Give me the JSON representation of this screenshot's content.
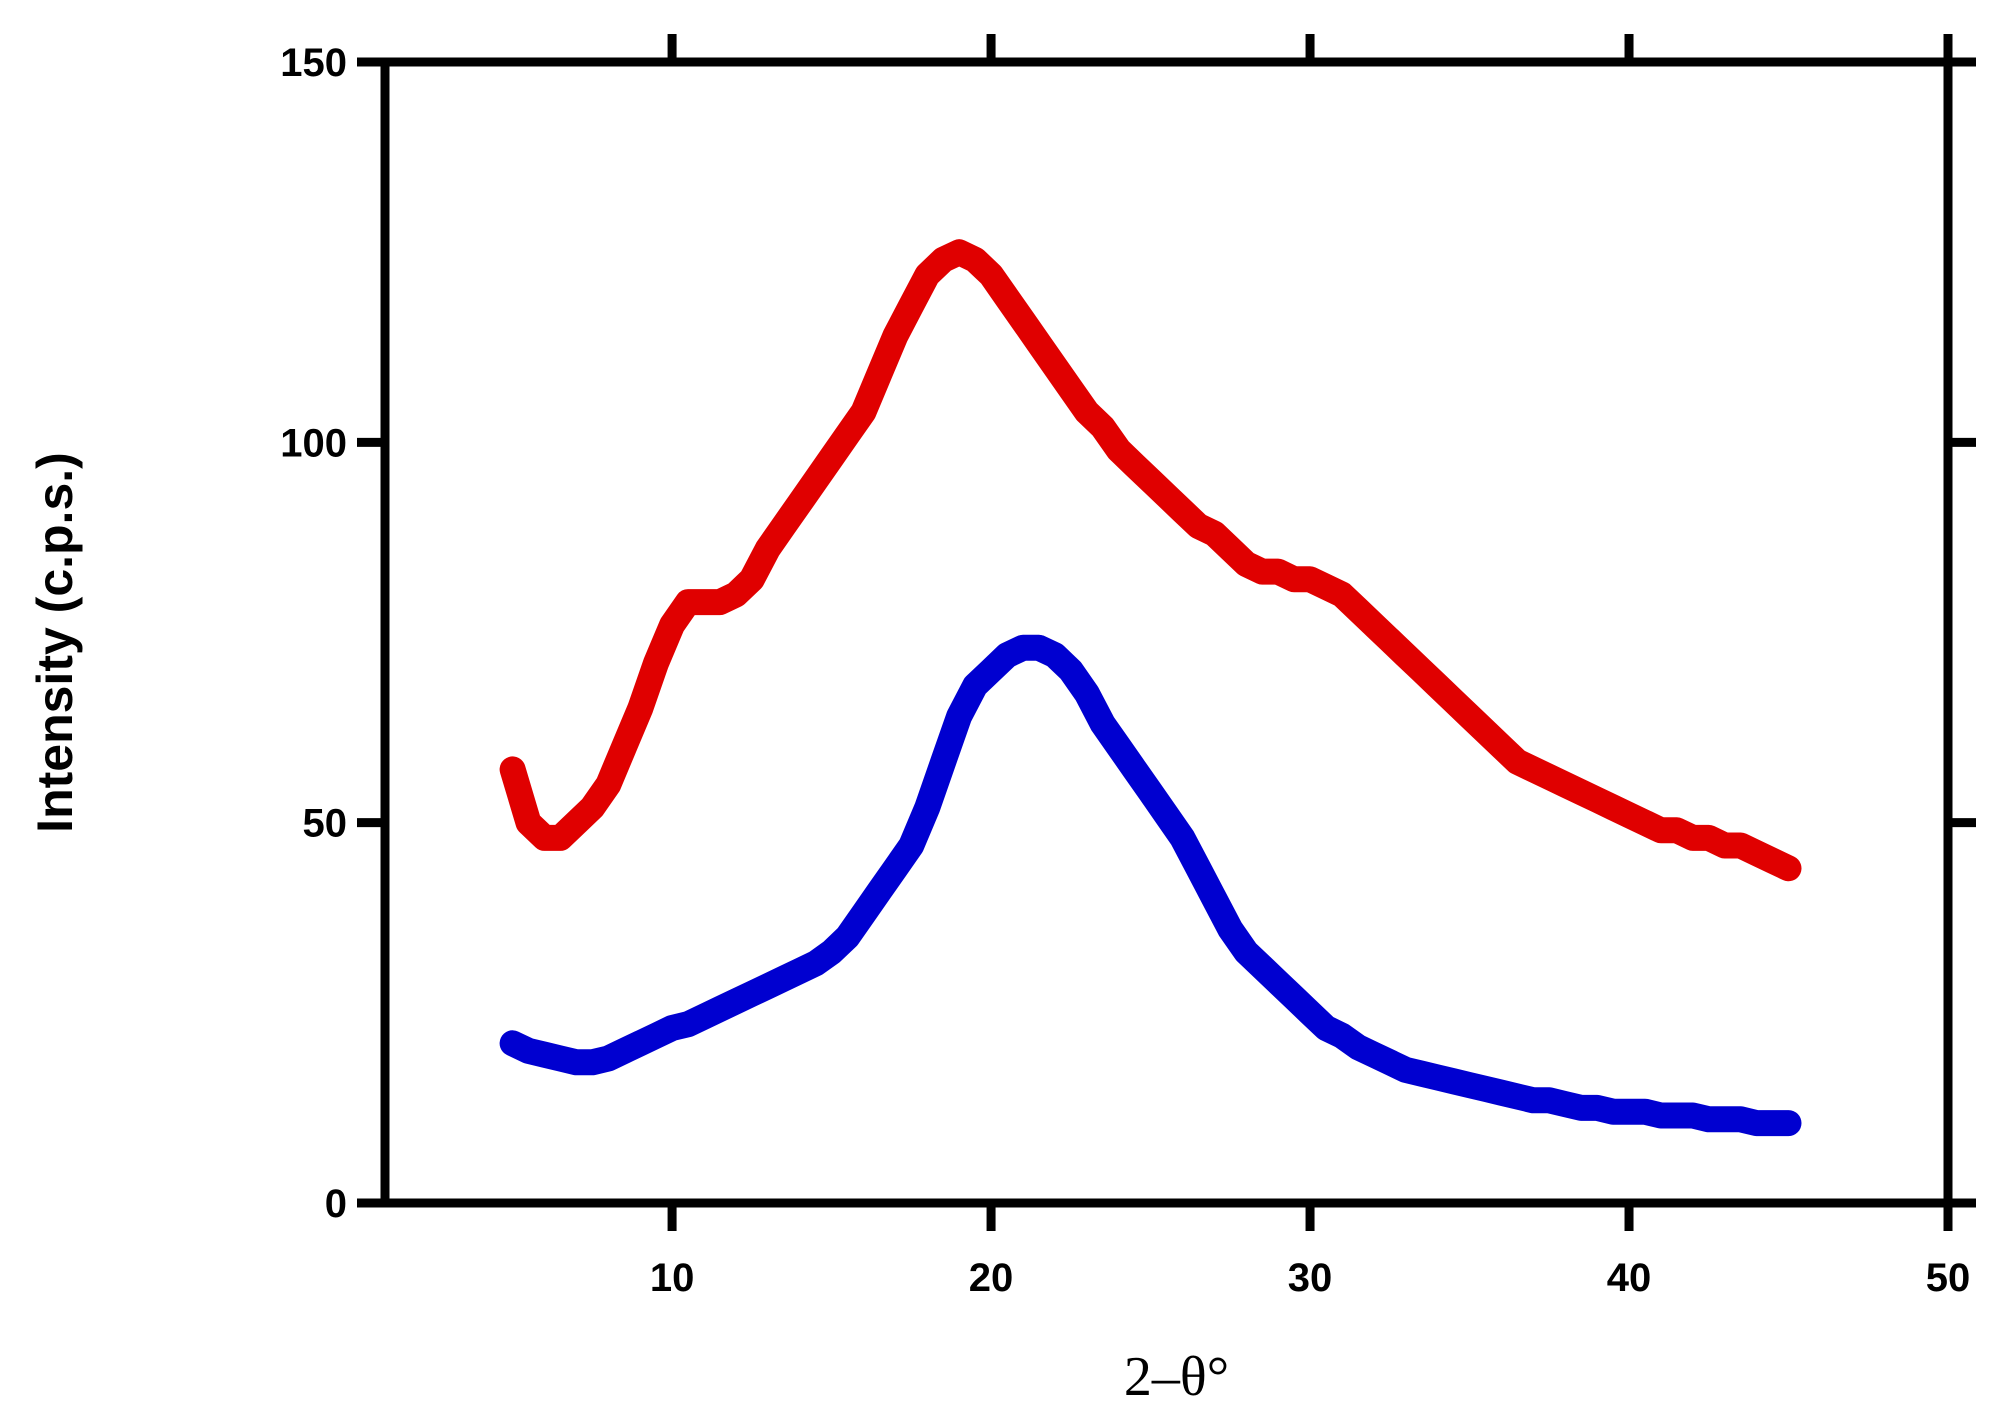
{
  "chart_data": {
    "type": "line",
    "title": "",
    "xlabel": "2–θ°",
    "ylabel": "Intensity (c.p.s.)",
    "xlim": [
      1,
      50
    ],
    "ylim": [
      0,
      150
    ],
    "xticks": [
      10,
      20,
      30,
      40,
      50
    ],
    "yticks": [
      0,
      50,
      100,
      150
    ],
    "grid": false,
    "series": [
      {
        "color": "#e00000",
        "x": [
          5,
          5.5,
          6,
          6.5,
          7,
          7.5,
          8,
          8.5,
          9,
          9.5,
          10,
          10.5,
          11,
          11.5,
          12,
          12.5,
          13,
          13.5,
          14,
          14.5,
          15,
          15.5,
          16,
          16.5,
          17,
          17.5,
          18,
          18.5,
          19,
          19.5,
          20,
          20.5,
          21,
          21.5,
          22,
          22.5,
          23,
          23.5,
          24,
          24.5,
          25,
          25.5,
          26,
          26.5,
          27,
          27.5,
          28,
          28.5,
          29,
          29.5,
          30,
          30.5,
          31,
          31.5,
          32,
          32.5,
          33,
          33.5,
          34,
          34.5,
          35,
          35.5,
          36,
          36.5,
          37,
          37.5,
          38,
          38.5,
          39,
          39.5,
          40,
          40.5,
          41,
          41.5,
          42,
          42.5,
          43,
          43.5,
          44,
          44.5,
          45
        ],
        "y": [
          57,
          50,
          48,
          48,
          50,
          52,
          55,
          60,
          65,
          71,
          76,
          79,
          79,
          79,
          80,
          82,
          86,
          89,
          92,
          95,
          98,
          101,
          104,
          109,
          114,
          118,
          122,
          124,
          125,
          124,
          122,
          119,
          116,
          113,
          110,
          107,
          104,
          102,
          99,
          97,
          95,
          93,
          91,
          89,
          88,
          86,
          84,
          83,
          83,
          82,
          82,
          81,
          80,
          78,
          76,
          74,
          72,
          70,
          68,
          66,
          64,
          62,
          60,
          58,
          57,
          56,
          55,
          54,
          53,
          52,
          51,
          50,
          49,
          49,
          48,
          48,
          47,
          47,
          46,
          45,
          44
        ]
      },
      {
        "color": "#0000d0",
        "x": [
          5,
          5.5,
          6,
          6.5,
          7,
          7.5,
          8,
          8.5,
          9,
          9.5,
          10,
          10.5,
          11,
          11.5,
          12,
          12.5,
          13,
          13.5,
          14,
          14.5,
          15,
          15.5,
          16,
          16.5,
          17,
          17.5,
          18,
          18.5,
          19,
          19.5,
          20,
          20.5,
          21,
          21.5,
          22,
          22.5,
          23,
          23.5,
          24,
          24.5,
          25,
          25.5,
          26,
          26.5,
          27,
          27.5,
          28,
          28.5,
          29,
          29.5,
          30,
          30.5,
          31,
          31.5,
          32,
          32.5,
          33,
          33.5,
          34,
          34.5,
          35,
          35.5,
          36,
          36.5,
          37,
          37.5,
          38,
          38.5,
          39,
          39.5,
          40,
          40.5,
          41,
          41.5,
          42,
          42.5,
          43,
          43.5,
          44,
          44.5,
          45
        ],
        "y": [
          21,
          20,
          19.5,
          19,
          18.5,
          18.5,
          19,
          20,
          21,
          22,
          23,
          23.5,
          24.5,
          25.5,
          26.5,
          27.5,
          28.5,
          29.5,
          30.5,
          31.5,
          33,
          35,
          38,
          41,
          44,
          47,
          52,
          58,
          64,
          68,
          70,
          72,
          73,
          73,
          72,
          70,
          67,
          63,
          60,
          57,
          54,
          51,
          48,
          44,
          40,
          36,
          33,
          31,
          29,
          27,
          25,
          23,
          22,
          20.5,
          19.5,
          18.5,
          17.5,
          17,
          16.5,
          16,
          15.5,
          15,
          14.5,
          14,
          13.5,
          13.5,
          13,
          12.5,
          12.5,
          12,
          12,
          12,
          11.5,
          11.5,
          11.5,
          11,
          11,
          11,
          10.5,
          10.5,
          10.5
        ]
      }
    ]
  }
}
